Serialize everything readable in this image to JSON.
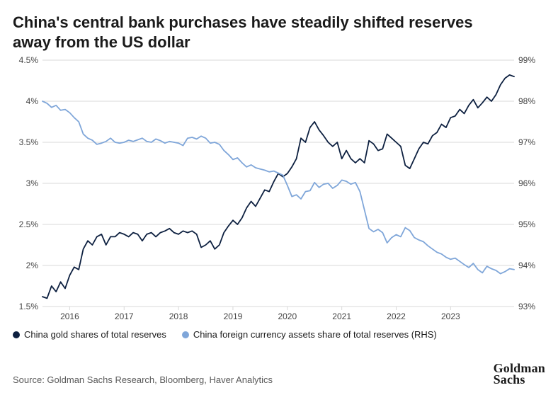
{
  "title": "China's central bank purchases have steadily shifted reserves away from the US dollar",
  "source": "Source: Goldman Sachs Research, Bloomberg, Haver Analytics",
  "logo_line1": "Goldman",
  "logo_line2": "Sachs",
  "chart": {
    "type": "line-dual-axis",
    "background_color": "#ffffff",
    "grid_color": "#d9d9d9",
    "font_color": "#444444",
    "axis_fontsize": 12,
    "line_width": 1.8,
    "n_points": 105,
    "x": {
      "min": 0,
      "max": 104
    },
    "x_ticks": [
      {
        "idx": 6,
        "label": "2016"
      },
      {
        "idx": 18,
        "label": "2017"
      },
      {
        "idx": 30,
        "label": "2018"
      },
      {
        "idx": 42,
        "label": "2019"
      },
      {
        "idx": 54,
        "label": "2020"
      },
      {
        "idx": 66,
        "label": "2021"
      },
      {
        "idx": 78,
        "label": "2022"
      },
      {
        "idx": 90,
        "label": "2023"
      }
    ],
    "y_left": {
      "min": 1.5,
      "max": 4.5,
      "ticks": [
        1.5,
        2.0,
        2.5,
        3.0,
        3.5,
        4.0,
        4.5
      ],
      "tick_labels": [
        "1.5%",
        "2%",
        "2.5%",
        "3%",
        "3.5%",
        "4%",
        "4.5%"
      ]
    },
    "y_right": {
      "min": 93,
      "max": 99,
      "ticks": [
        93,
        94,
        95,
        96,
        97,
        98,
        99
      ],
      "tick_labels": [
        "93%",
        "94%",
        "95%",
        "96%",
        "97%",
        "98%",
        "99%"
      ]
    },
    "series": [
      {
        "id": "gold",
        "label": "China gold shares of total reserves",
        "color": "#0d2040",
        "axis": "left",
        "data": [
          1.62,
          1.6,
          1.75,
          1.68,
          1.8,
          1.72,
          1.88,
          1.98,
          1.95,
          2.2,
          2.3,
          2.25,
          2.35,
          2.38,
          2.25,
          2.35,
          2.35,
          2.4,
          2.38,
          2.35,
          2.4,
          2.38,
          2.3,
          2.38,
          2.4,
          2.35,
          2.4,
          2.42,
          2.45,
          2.4,
          2.38,
          2.42,
          2.4,
          2.42,
          2.38,
          2.22,
          2.25,
          2.3,
          2.2,
          2.25,
          2.4,
          2.48,
          2.55,
          2.5,
          2.58,
          2.7,
          2.78,
          2.72,
          2.82,
          2.92,
          2.9,
          3.02,
          3.12,
          3.08,
          3.12,
          3.2,
          3.3,
          3.55,
          3.5,
          3.68,
          3.75,
          3.65,
          3.58,
          3.5,
          3.45,
          3.5,
          3.3,
          3.4,
          3.3,
          3.25,
          3.3,
          3.25,
          3.52,
          3.48,
          3.4,
          3.42,
          3.6,
          3.55,
          3.5,
          3.45,
          3.22,
          3.18,
          3.3,
          3.42,
          3.5,
          3.48,
          3.58,
          3.62,
          3.72,
          3.68,
          3.8,
          3.82,
          3.9,
          3.85,
          3.95,
          4.02,
          3.92,
          3.98,
          4.05,
          4.0,
          4.08,
          4.2,
          4.28,
          4.32,
          4.3
        ]
      },
      {
        "id": "fx",
        "label": "China foreign currency assets share of total reserves (RHS)",
        "color": "#7fa6d9",
        "axis": "right",
        "data": [
          98.0,
          97.95,
          97.85,
          97.9,
          97.78,
          97.8,
          97.72,
          97.6,
          97.5,
          97.2,
          97.1,
          97.05,
          96.95,
          96.98,
          97.02,
          97.1,
          97.0,
          96.98,
          97.0,
          97.05,
          97.02,
          97.06,
          97.1,
          97.02,
          97.0,
          97.08,
          97.04,
          96.98,
          97.02,
          97.0,
          96.98,
          96.92,
          97.1,
          97.12,
          97.08,
          97.15,
          97.1,
          96.98,
          97.0,
          96.95,
          96.8,
          96.7,
          96.58,
          96.62,
          96.5,
          96.4,
          96.45,
          96.38,
          96.35,
          96.32,
          96.28,
          96.3,
          96.25,
          96.2,
          95.95,
          95.68,
          95.72,
          95.62,
          95.8,
          95.82,
          96.02,
          95.9,
          95.98,
          96.0,
          95.88,
          95.95,
          96.08,
          96.05,
          95.98,
          96.02,
          95.8,
          95.35,
          94.9,
          94.82,
          94.88,
          94.8,
          94.55,
          94.68,
          94.75,
          94.7,
          94.92,
          94.85,
          94.68,
          94.62,
          94.58,
          94.48,
          94.4,
          94.32,
          94.28,
          94.2,
          94.15,
          94.18,
          94.1,
          94.02,
          93.95,
          94.05,
          93.9,
          93.82,
          93.98,
          93.92,
          93.88,
          93.8,
          93.85,
          93.92,
          93.9
        ]
      }
    ]
  },
  "legend": [
    {
      "color": "#0d2040",
      "label": "China gold shares of total reserves"
    },
    {
      "color": "#7fa6d9",
      "label": "China foreign currency assets share of total reserves (RHS)"
    }
  ]
}
